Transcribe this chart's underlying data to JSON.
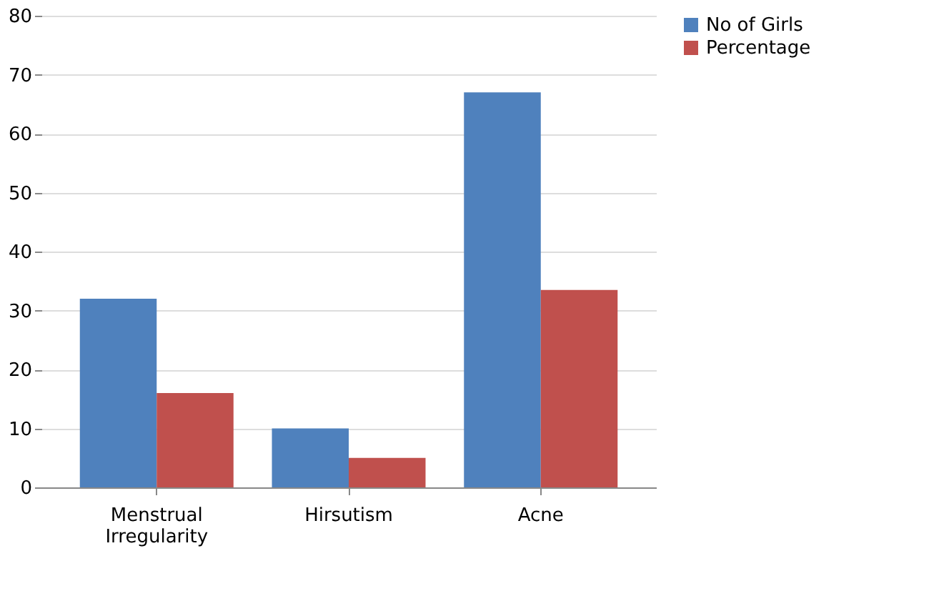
{
  "chart_data": {
    "type": "bar",
    "categories": [
      "Menstrual Irregularity",
      "Hirsutism",
      "Acne"
    ],
    "series": [
      {
        "name": "No of Girls",
        "color": "#4f81bd",
        "values": [
          32,
          10,
          67
        ]
      },
      {
        "name": "Percentage",
        "color": "#c0504d",
        "values": [
          16,
          5,
          33.5
        ]
      }
    ],
    "ylim": [
      0,
      80
    ],
    "yticks": [
      0,
      10,
      20,
      30,
      40,
      50,
      60,
      70,
      80
    ],
    "grid": "y",
    "legend": "right"
  }
}
